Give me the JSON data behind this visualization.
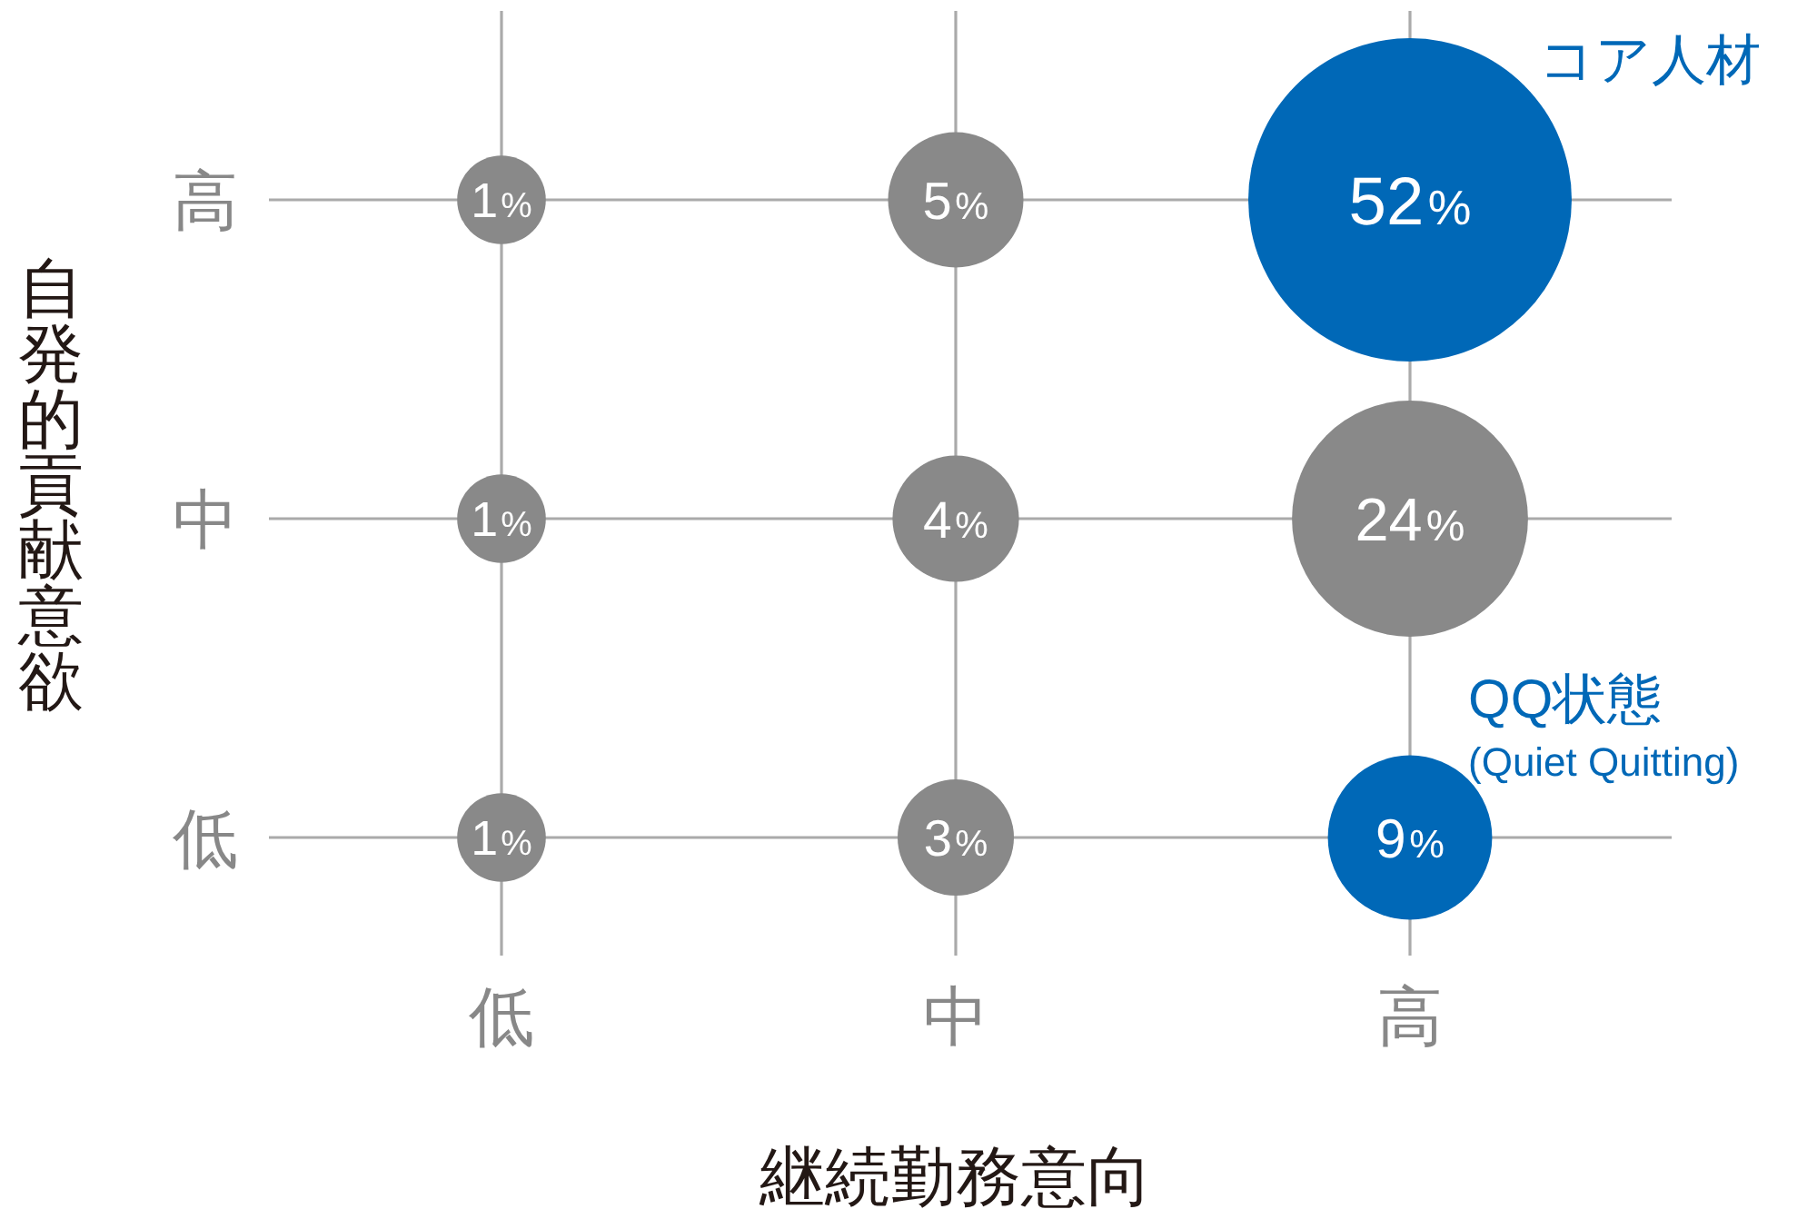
{
  "chart_data": {
    "type": "heatmap",
    "xlabel": "継続勤務意向",
    "ylabel": "自発的貢献意欲",
    "categories": [
      "低",
      "中",
      "高"
    ],
    "y_categories": [
      "高",
      "中",
      "低"
    ],
    "grid": true,
    "cells": [
      [
        1,
        5,
        52
      ],
      [
        1,
        4,
        24
      ],
      [
        1,
        3,
        9
      ]
    ],
    "cell_labels": [
      [
        "1%",
        "5%",
        "52%"
      ],
      [
        "1%",
        "4%",
        "24%"
      ],
      [
        "1%",
        "3%",
        "9%"
      ]
    ],
    "colors": [
      [
        "#898989",
        "#898989",
        "#0068b7"
      ],
      [
        "#898989",
        "#898989",
        "#898989"
      ],
      [
        "#898989",
        "#898989",
        "#0068b7"
      ]
    ],
    "annotations": [
      "コア人材",
      "QQ状態",
      "(Quiet Quitting)"
    ]
  }
}
